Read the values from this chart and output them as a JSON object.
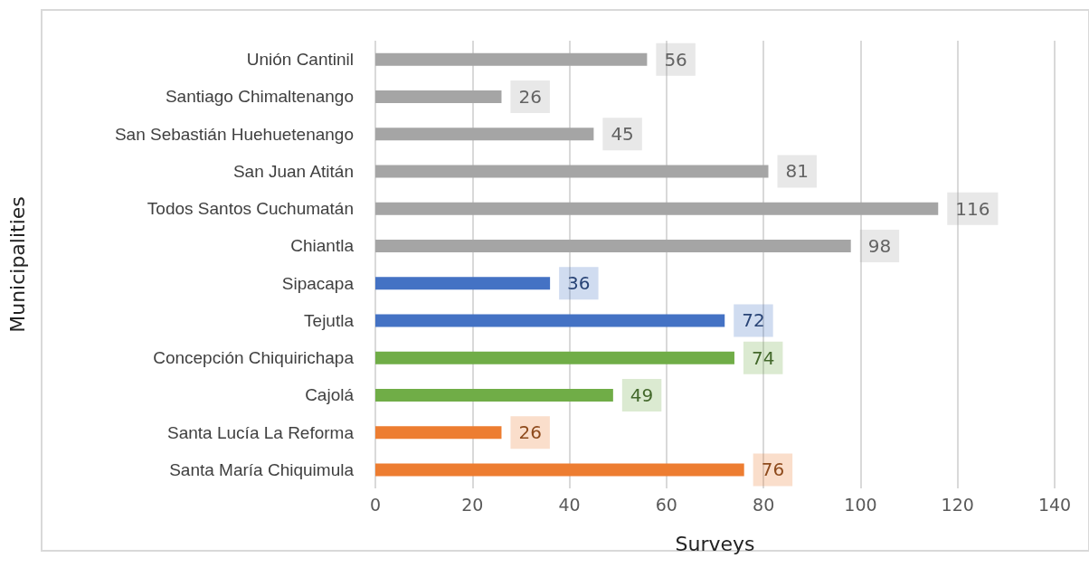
{
  "chart_data": {
    "type": "bar",
    "orientation": "horizontal",
    "xlabel": "Surveys",
    "ylabel": "Municipalities",
    "categories": [
      "Unión Cantinil",
      "Santiago Chimaltenango",
      "San Sebastián Huehuetenango",
      "San Juan Atitán",
      "Todos Santos Cuchumatán",
      "Chiantla",
      "Sipacapa",
      "Tejutla",
      "Concepción Chiquirichapa",
      "Cajolá",
      "Santa Lucía La Reforma",
      "Santa María Chiquimula"
    ],
    "values": [
      56,
      26,
      45,
      81,
      116,
      98,
      36,
      72,
      74,
      49,
      26,
      76
    ],
    "colors": [
      "#a5a5a5",
      "#a5a5a5",
      "#a5a5a5",
      "#a5a5a5",
      "#a5a5a5",
      "#a5a5a5",
      "#4472c4",
      "#4472c4",
      "#70ad47",
      "#70ad47",
      "#ed7d31",
      "#ed7d31"
    ],
    "xlim": [
      0,
      140
    ],
    "xticks": [
      0,
      20,
      40,
      60,
      80,
      100,
      120,
      140
    ],
    "grid": "x",
    "data_labels": true
  }
}
